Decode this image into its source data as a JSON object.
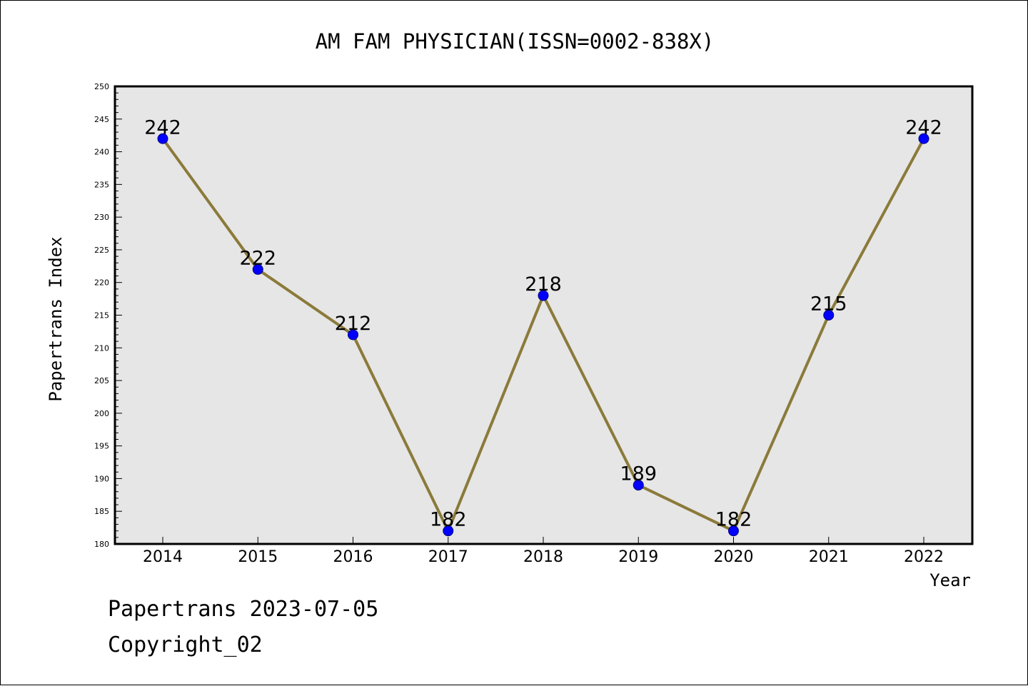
{
  "colors": {
    "plot_background": "#e6e6e6",
    "line": "#8b7a3a",
    "marker_fill": "#0000ff",
    "marker_stroke": "#000080"
  },
  "chart_data": {
    "type": "line",
    "title": "AM FAM PHYSICIAN(ISSN=0002-838X)",
    "xlabel": "Year",
    "ylabel": "Papertrans Index",
    "categories": [
      "2014",
      "2015",
      "2016",
      "2017",
      "2018",
      "2019",
      "2020",
      "2021",
      "2022"
    ],
    "series": [
      {
        "values": [
          242,
          222,
          212,
          182,
          218,
          189,
          182,
          215,
          242
        ]
      }
    ],
    "ylim": [
      180,
      250
    ],
    "yticks": [
      180,
      185,
      190,
      195,
      200,
      205,
      210,
      215,
      220,
      225,
      230,
      235,
      240,
      245,
      250
    ],
    "data_labels": [
      "242",
      "222",
      "212",
      "182",
      "218",
      "189",
      "182",
      "215",
      "242"
    ],
    "grid": false,
    "legend": "none"
  },
  "footer": {
    "line1": "Papertrans 2023-07-05",
    "line2": "Copyright_02"
  }
}
